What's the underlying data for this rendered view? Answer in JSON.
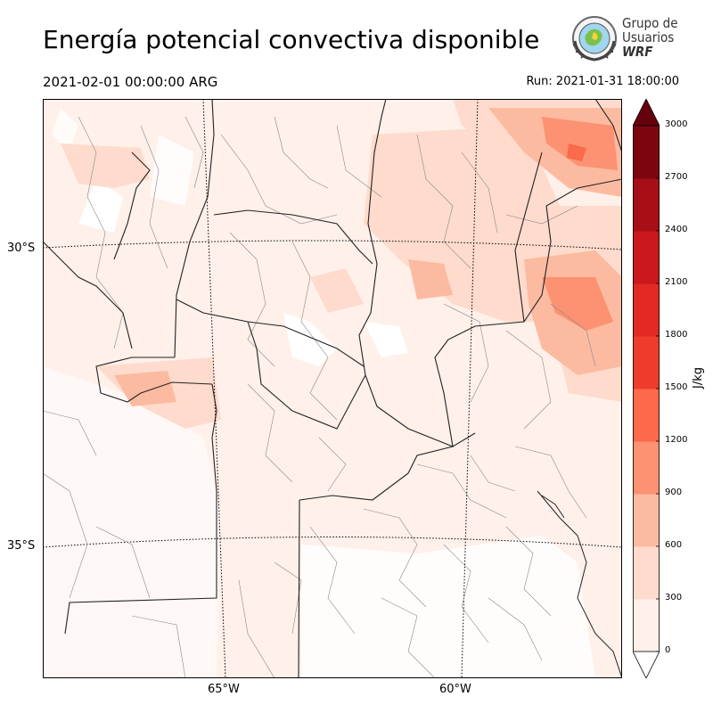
{
  "header": {
    "title": "Energía potencial convectiva disponible",
    "valid_time": "2021-02-01 00:00:00 ARG",
    "run_time": "Run: 2021-01-31 18:00:00"
  },
  "logo": {
    "line1": "Grupo de",
    "line2": "Usuarios",
    "line3": "WRF"
  },
  "axes": {
    "lat_labels": [
      "30°S",
      "35°S"
    ],
    "lon_labels": [
      "65°W",
      "60°W"
    ]
  },
  "colorbar": {
    "unit": "J/kg",
    "ticks": [
      "0",
      "300",
      "600",
      "900",
      "1200",
      "1500",
      "1800",
      "2100",
      "2400",
      "2700",
      "3000"
    ],
    "colors": [
      "#fff0ea",
      "#fedbcc",
      "#fcbba1",
      "#fc9272",
      "#fb6a4a",
      "#ef3b2c",
      "#e22a22",
      "#cb181d",
      "#a50f15",
      "#7b0610"
    ],
    "extend_color": "#67000d"
  }
}
